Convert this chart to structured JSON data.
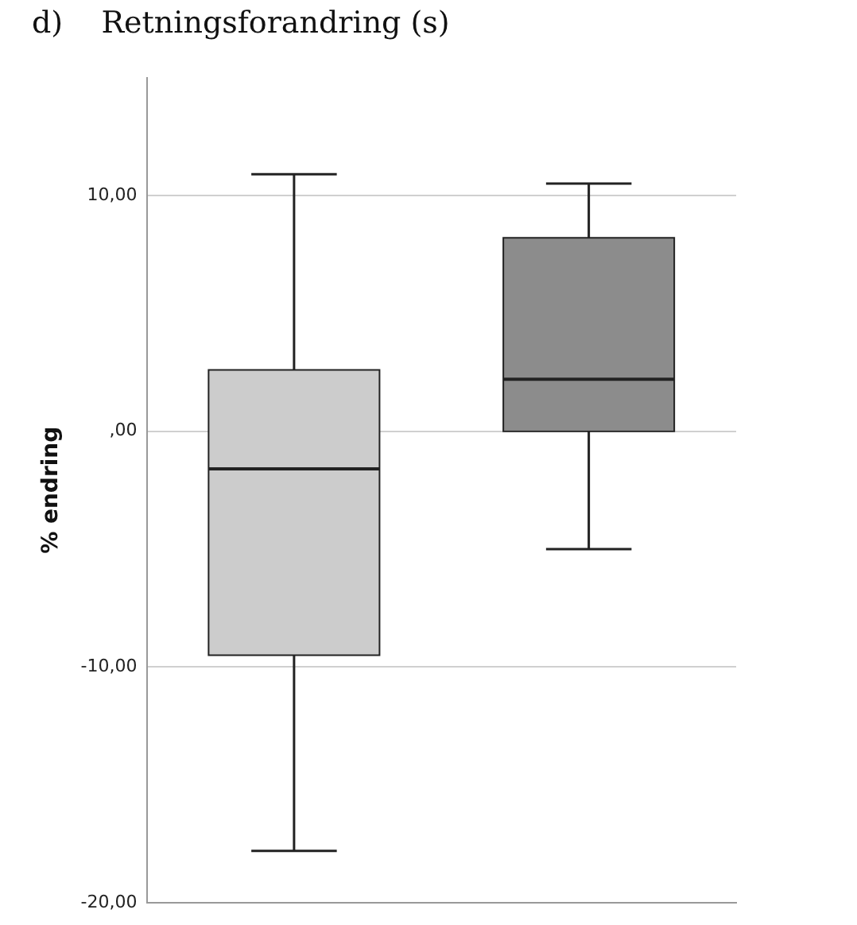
{
  "chart_data": {
    "type": "box",
    "title": "d)    Retningsforandring (s)",
    "ylabel": "% endring",
    "categories": [
      null,
      null
    ],
    "boxes": [
      {
        "low": -17.8,
        "q1": -9.5,
        "median": -1.6,
        "q3": 2.6,
        "high": 10.9
      },
      {
        "low": -5.0,
        "q1": 0,
        "median": 2.2,
        "q3": 8.2,
        "high": 10.5
      }
    ],
    "colors": [
      "#cccccc",
      "#8c8c8c"
    ],
    "ylim": [
      -20,
      15
    ],
    "yticks": [
      {
        "value": -20,
        "label": "-20,00"
      },
      {
        "value": -10,
        "label": "-10,00"
      },
      {
        "value": 0,
        "label": ",00"
      },
      {
        "value": 10,
        "label": "10,00"
      }
    ],
    "grid": "y",
    "tick_labels": "y"
  }
}
